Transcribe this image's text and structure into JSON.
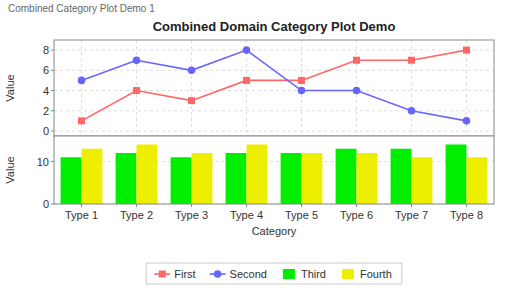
{
  "chart_data": [
    {
      "type": "line",
      "title": "Combined Domain Category Plot Demo",
      "annotations": [
        "Combined Category Plot Demo 1"
      ],
      "ylabel": "Value",
      "categories": [
        "Type 1",
        "Type 2",
        "Type 3",
        "Type 4",
        "Type 5",
        "Type 6",
        "Type 7",
        "Type 8"
      ],
      "series": [
        {
          "name": "First",
          "color": "#FF6666",
          "marker": "square",
          "values": [
            1,
            4,
            3,
            5,
            5,
            7,
            7,
            8
          ]
        },
        {
          "name": "Second",
          "color": "#6666FF",
          "marker": "circle",
          "values": [
            5,
            7,
            6,
            8,
            4,
            4,
            2,
            1
          ]
        }
      ],
      "ylim": [
        -0.5,
        9
      ],
      "yticks": [
        0,
        2,
        4,
        6,
        8
      ],
      "grid": true,
      "tick_labels": "y",
      "legend": "bottom"
    },
    {
      "type": "bar",
      "xlabel": "Category",
      "ylabel": "Value",
      "categories": [
        "Type 1",
        "Type 2",
        "Type 3",
        "Type 4",
        "Type 5",
        "Type 6",
        "Type 7",
        "Type 8"
      ],
      "series": [
        {
          "name": "Third",
          "color": "#00EE00",
          "values": [
            11,
            12,
            11,
            12,
            12,
            13,
            13,
            14
          ]
        },
        {
          "name": "Fourth",
          "color": "#EEEE00",
          "values": [
            13,
            14,
            12,
            14,
            12,
            12,
            11,
            11
          ]
        }
      ],
      "ylim": [
        0,
        16
      ],
      "yticks": [
        0,
        10
      ],
      "grid": "y",
      "legend": "bottom"
    }
  ]
}
